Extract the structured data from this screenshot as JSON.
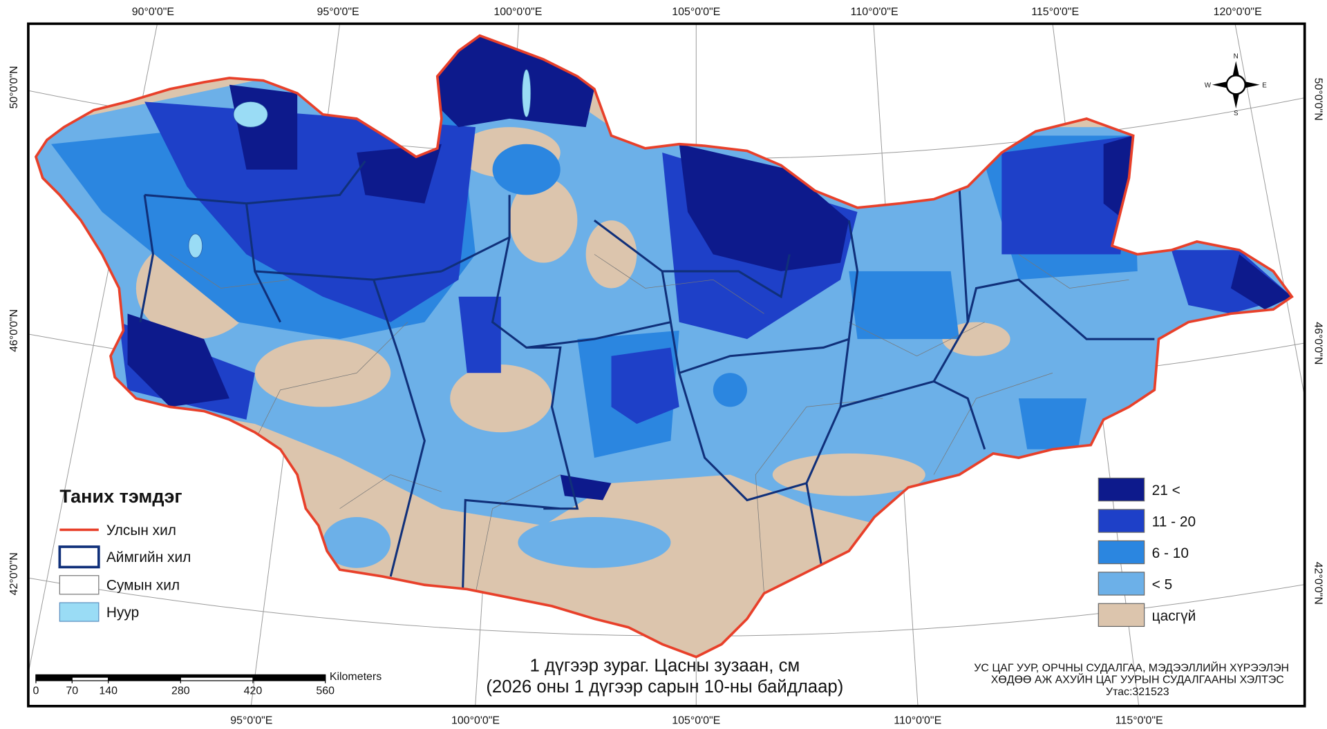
{
  "graticule": {
    "top": [
      "90°0'0\"E",
      "95°0'0\"E",
      "100°0'0\"E",
      "105°0'0\"E",
      "110°0'0\"E",
      "115°0'0\"E",
      "120°0'0\"E"
    ],
    "bottom": [
      "95°0'0\"E",
      "100°0'0\"E",
      "105°0'0\"E",
      "110°0'0\"E",
      "115°0'0\"E"
    ],
    "left": [
      "50°0'0\"N",
      "46°0'0\"N",
      "42°0'0\"N"
    ],
    "right": [
      "50°0'0\"N",
      "46°0'0\"N",
      "42°0'0\"N"
    ]
  },
  "compass": {
    "n": "N",
    "e": "E",
    "s": "S",
    "w": "W"
  },
  "legend": {
    "title": "Таних тэмдэг",
    "items": [
      "Улсын хил",
      "Аймгийн хил",
      "Сумын хил",
      "Нуур"
    ]
  },
  "classes": [
    "21 <",
    "11 - 20",
    "6 - 10",
    "<  5",
    "цасгүй"
  ],
  "scale_bar": {
    "unit": "Kilometers",
    "ticks": [
      0,
      70,
      140,
      280,
      420,
      560
    ]
  },
  "title": [
    "1 дүгээр зураг. Цасны зузаан, см",
    "(2026 оны 1 дүгээр сарын 10-ны байдлаар)"
  ],
  "credit": [
    "УС ЦАГ УУР, ОРЧНЫ СУДАЛГАА, МЭДЭЭЛЛИЙН ХҮРЭЭЛЭН",
    "ХӨДӨӨ АЖ АХУЙН ЦАГ УУРЫН СУДАЛГААНЫ ХЭЛТЭС",
    "Утас:321523"
  ]
}
